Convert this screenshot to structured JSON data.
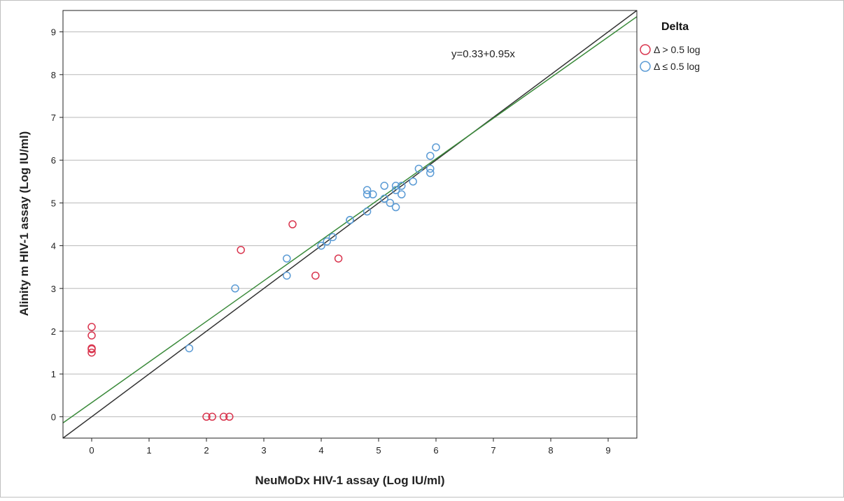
{
  "chart_data": {
    "type": "scatter",
    "xlabel": "NeuMoDx HIV-1 assay (Log IU/ml)",
    "ylabel": "Alinity m HIV-1 assay (Log IU/ml)",
    "xlim": [
      -0.5,
      9.5
    ],
    "ylim": [
      -0.5,
      9.5
    ],
    "x_ticks": [
      0,
      1,
      2,
      3,
      4,
      5,
      6,
      7,
      8,
      9
    ],
    "y_ticks": [
      0,
      1,
      2,
      3,
      4,
      5,
      6,
      7,
      8,
      9
    ],
    "grid": "horizontal",
    "legend": {
      "title": "Delta",
      "placement": "top-right outside",
      "entries": [
        "Δ > 0.5 log",
        "Δ ≤ 0.5 log"
      ]
    },
    "annotation": "y=0.33+0.95x",
    "reference_line": {
      "intercept": 0,
      "slope": 1,
      "color": "#333333"
    },
    "fit_line": {
      "intercept": 0.33,
      "slope": 0.95,
      "color": "#3a8a3a"
    },
    "series": [
      {
        "name": "Δ > 0.5 log",
        "color": "#d9354e",
        "points": [
          [
            0,
            2.1
          ],
          [
            0,
            1.9
          ],
          [
            0,
            1.6
          ],
          [
            0,
            1.58
          ],
          [
            0,
            1.5
          ],
          [
            2.0,
            0
          ],
          [
            2.1,
            0
          ],
          [
            2.3,
            0
          ],
          [
            2.4,
            0
          ],
          [
            2.6,
            3.9
          ],
          [
            3.5,
            4.5
          ],
          [
            3.9,
            3.3
          ],
          [
            4.3,
            3.7
          ]
        ]
      },
      {
        "name": "Δ ≤ 0.5 log",
        "color": "#5b9bd5",
        "points": [
          [
            1.7,
            1.6
          ],
          [
            2.5,
            3.0
          ],
          [
            3.4,
            3.7
          ],
          [
            3.4,
            3.3
          ],
          [
            4.0,
            4.0
          ],
          [
            4.1,
            4.1
          ],
          [
            4.2,
            4.2
          ],
          [
            4.5,
            4.6
          ],
          [
            4.5,
            4.6
          ],
          [
            4.8,
            5.3
          ],
          [
            4.8,
            5.2
          ],
          [
            4.8,
            4.8
          ],
          [
            4.9,
            5.2
          ],
          [
            5.1,
            5.4
          ],
          [
            5.1,
            5.1
          ],
          [
            5.2,
            5.0
          ],
          [
            5.3,
            5.4
          ],
          [
            5.3,
            5.3
          ],
          [
            5.3,
            4.9
          ],
          [
            5.4,
            5.4
          ],
          [
            5.4,
            5.2
          ],
          [
            5.6,
            5.5
          ],
          [
            5.7,
            5.8
          ],
          [
            5.9,
            6.1
          ],
          [
            5.9,
            5.8
          ],
          [
            5.9,
            5.7
          ],
          [
            6.0,
            6.3
          ]
        ]
      }
    ]
  }
}
